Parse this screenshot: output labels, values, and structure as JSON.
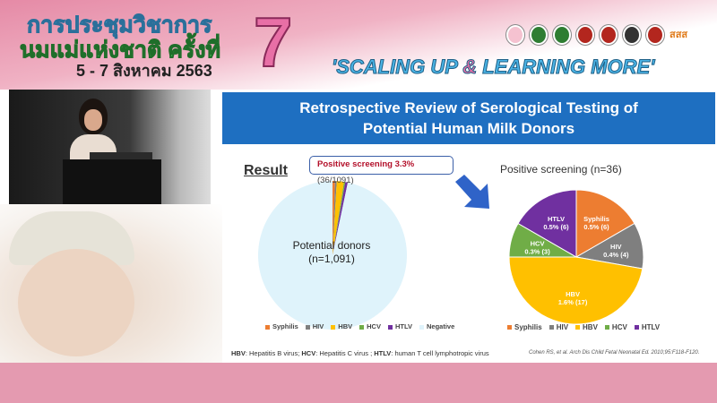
{
  "header": {
    "thai_line1": "การประชุมวิชาการ",
    "thai_line2": "นมแม่แห่งชาติ ครั้งที่",
    "thai_dates": "5 - 7 สิงหาคม 2563",
    "edition_number": "7",
    "slogan_part1": "'SCALING UP ",
    "slogan_amp": "&",
    "slogan_part2": " LEARNING MORE'",
    "sponsor_logo_text": "สสส"
  },
  "slide": {
    "title_line1": "Retrospective Review of Serological Testing of",
    "title_line2": "Potential Human Milk Donors",
    "result_heading": "Result",
    "callout_bold": "Positive screening 3.3%",
    "callout_rest": " (36/1091)",
    "left_pie_label_line1": "Potential donors",
    "left_pie_label_line2": "(n=1,091)",
    "right_pie_title": "Positive screening (n=36)",
    "footnote": {
      "hbv": "HBV",
      "hbv_text": ": Hepatitis B virus; ",
      "hcv": "HCV",
      "hcv_text": ": Hepatitis C virus ; ",
      "htlv": "HTLV",
      "htlv_text": ": human T cell lymphotropic virus"
    },
    "citation": "Cohen RS, et al. Arch Dis Child Fetal Neonatal Ed. 2010;95:F118-F120."
  },
  "chart_data": [
    {
      "type": "pie",
      "title": "",
      "center_label": "Potential donors (n=1,091)",
      "categories": [
        "Syphilis",
        "HIV",
        "HBV",
        "HCV",
        "HTLV",
        "Negative"
      ],
      "values": [
        6,
        4,
        17,
        3,
        6,
        1055
      ],
      "colors": [
        "#ed7d31",
        "#7f7f7f",
        "#ffc000",
        "#70ad47",
        "#7030a0",
        "#dff3fb"
      ],
      "legend": "bottom"
    },
    {
      "type": "pie",
      "title": "Positive screening (n=36)",
      "categories": [
        "Syphilis",
        "HIV",
        "HBV",
        "HCV",
        "HTLV"
      ],
      "values": [
        6,
        4,
        17,
        3,
        6
      ],
      "data_labels": [
        [
          "Syphilis",
          "0.5% (6)"
        ],
        [
          "HIV",
          "0.4% (4)"
        ],
        [
          "HBV",
          "1.6% (17)"
        ],
        [
          "HCV",
          "0.3% (3)"
        ],
        [
          "HTLV",
          "0.5% (6)"
        ]
      ],
      "colors": [
        "#ed7d31",
        "#7f7f7f",
        "#ffc000",
        "#70ad47",
        "#7030a0"
      ],
      "legend": "bottom"
    }
  ]
}
